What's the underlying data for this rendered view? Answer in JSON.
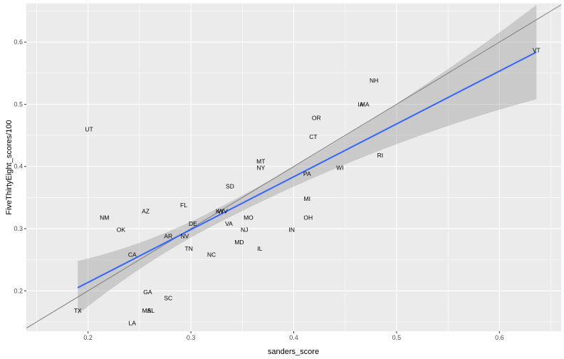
{
  "chart_data": {
    "type": "scatter",
    "xlabel": "sanders_score",
    "ylabel": "FiveThirtyEight_scores/100",
    "xlim": [
      0.14,
      0.66
    ],
    "ylim": [
      0.135,
      0.662
    ],
    "x_ticks": [
      0.2,
      0.3,
      0.4,
      0.5,
      0.6
    ],
    "x_tick_labels": [
      "0.2",
      "0.3",
      "0.4",
      "0.5",
      "0.6"
    ],
    "y_ticks": [
      0.2,
      0.3,
      0.4,
      0.5,
      0.6
    ],
    "y_tick_labels": [
      "0.2",
      "0.3",
      "0.4",
      "0.5",
      "0.6"
    ],
    "grid": true,
    "panel_color": "#ebebeb",
    "grid_color": "#ffffff",
    "fit_line_color": "#3366ff",
    "ribbon_color": "#999999",
    "reference_line_color": "#7f7f7f",
    "points": [
      {
        "label": "VT",
        "x": 0.636,
        "y": 0.587
      },
      {
        "label": "NH",
        "x": 0.478,
        "y": 0.538
      },
      {
        "label": "IA",
        "x": 0.465,
        "y": 0.5
      },
      {
        "label": "MA",
        "x": 0.469,
        "y": 0.5
      },
      {
        "label": "OR",
        "x": 0.422,
        "y": 0.478
      },
      {
        "label": "CT",
        "x": 0.419,
        "y": 0.448
      },
      {
        "label": "UT",
        "x": 0.201,
        "y": 0.46
      },
      {
        "label": "RI",
        "x": 0.484,
        "y": 0.418
      },
      {
        "label": "MT",
        "x": 0.368,
        "y": 0.408
      },
      {
        "label": "NY",
        "x": 0.368,
        "y": 0.398
      },
      {
        "label": "WI",
        "x": 0.445,
        "y": 0.398
      },
      {
        "label": "PA",
        "x": 0.413,
        "y": 0.388
      },
      {
        "label": "SD",
        "x": 0.338,
        "y": 0.368
      },
      {
        "label": "MI",
        "x": 0.413,
        "y": 0.348
      },
      {
        "label": "FL",
        "x": 0.293,
        "y": 0.338
      },
      {
        "label": "AZ",
        "x": 0.256,
        "y": 0.328
      },
      {
        "label": "KY",
        "x": 0.328,
        "y": 0.328
      },
      {
        "label": "WV",
        "x": 0.331,
        "y": 0.328
      },
      {
        "label": "NM",
        "x": 0.216,
        "y": 0.318
      },
      {
        "label": "MO",
        "x": 0.356,
        "y": 0.318
      },
      {
        "label": "OH",
        "x": 0.414,
        "y": 0.318
      },
      {
        "label": "DE",
        "x": 0.302,
        "y": 0.308
      },
      {
        "label": "VA",
        "x": 0.337,
        "y": 0.308
      },
      {
        "label": "OK",
        "x": 0.232,
        "y": 0.298
      },
      {
        "label": "NJ",
        "x": 0.352,
        "y": 0.298
      },
      {
        "label": "IN",
        "x": 0.398,
        "y": 0.298
      },
      {
        "label": "AR",
        "x": 0.278,
        "y": 0.288
      },
      {
        "label": "NV",
        "x": 0.294,
        "y": 0.288
      },
      {
        "label": "MD",
        "x": 0.347,
        "y": 0.278
      },
      {
        "label": "TN",
        "x": 0.298,
        "y": 0.268
      },
      {
        "label": "IL",
        "x": 0.367,
        "y": 0.268
      },
      {
        "label": "CA",
        "x": 0.243,
        "y": 0.258
      },
      {
        "label": "NC",
        "x": 0.32,
        "y": 0.258
      },
      {
        "label": "GA",
        "x": 0.258,
        "y": 0.198
      },
      {
        "label": "SC",
        "x": 0.278,
        "y": 0.188
      },
      {
        "label": "TX",
        "x": 0.19,
        "y": 0.168
      },
      {
        "label": "MS",
        "x": 0.257,
        "y": 0.168
      },
      {
        "label": "AL",
        "x": 0.261,
        "y": 0.168
      },
      {
        "label": "LA",
        "x": 0.243,
        "y": 0.148
      }
    ],
    "fit": {
      "x": [
        0.19,
        0.636
      ],
      "y": [
        0.205,
        0.584
      ],
      "ribbon_upper": [
        0.248,
        0.66
      ],
      "ribbon_lower": [
        0.162,
        0.508
      ],
      "ribbon_center_x": 0.322,
      "ribbon_center_halfwidth": 0.012
    },
    "reference_line": {
      "slope": 1,
      "intercept": 0
    }
  }
}
